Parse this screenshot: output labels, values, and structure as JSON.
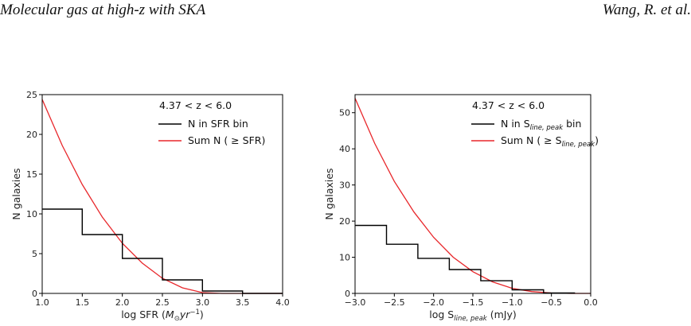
{
  "header": {
    "left_title": "Molecular gas at high-z with SKA",
    "right_author": "Wang, R. et al."
  },
  "colors": {
    "step": "#000000",
    "curve": "#e8272b",
    "axis": "#000000"
  },
  "chart_data": [
    {
      "type": "line",
      "xlabel_prefix": "log SFR (",
      "xlabel_unit_base": "M",
      "xlabel_unit_sub": "⊙",
      "xlabel_unit_rest": "yr",
      "xlabel_unit_exp": "−1",
      "xlabel_suffix": ")",
      "ylabel": "N galaxies",
      "xlim": [
        1.0,
        4.0
      ],
      "ylim": [
        0,
        25
      ],
      "xticks": [
        1.0,
        1.5,
        2.0,
        2.5,
        3.0,
        3.5,
        4.0
      ],
      "xtick_labels": [
        "1.0",
        "1.5",
        "2.0",
        "2.5",
        "3.0",
        "3.5",
        "4.0"
      ],
      "yticks": [
        0,
        5,
        10,
        15,
        20,
        25
      ],
      "ytick_labels": [
        "0",
        "5",
        "10",
        "15",
        "20",
        "25"
      ],
      "annotation": "4.37 < z < 6.0",
      "legend": [
        {
          "label": "N in SFR bin",
          "label_sub": "",
          "label_tail": ""
        },
        {
          "label": "Sum N ( ≥ SFR)",
          "label_sub": "",
          "label_tail": ""
        }
      ],
      "series": [
        {
          "name": "N in SFR bin",
          "kind": "step",
          "bin_edges": [
            1.0,
            1.5,
            2.0,
            2.5,
            3.0,
            3.5,
            4.0
          ],
          "values": [
            10.6,
            7.4,
            4.4,
            1.7,
            0.3,
            0.0
          ]
        },
        {
          "name": "Sum N ( ≥ SFR)",
          "kind": "curve",
          "x": [
            1.0,
            1.25,
            1.5,
            1.75,
            2.0,
            2.25,
            2.5,
            2.75,
            3.0,
            3.25,
            3.5,
            3.75,
            4.0
          ],
          "y": [
            24.4,
            18.6,
            13.7,
            9.6,
            6.3,
            3.8,
            1.9,
            0.7,
            0.1,
            0.0,
            0.0,
            0.0,
            0.0
          ]
        }
      ]
    },
    {
      "type": "line",
      "xlabel_prefix": "log S",
      "xlabel_unit_base": "",
      "xlabel_unit_sub": "line, peak",
      "xlabel_unit_rest": " (mJy)",
      "xlabel_unit_exp": "",
      "xlabel_suffix": "",
      "ylabel": "N galaxies",
      "xlim": [
        -3.0,
        0.0
      ],
      "ylim": [
        0,
        55
      ],
      "xticks": [
        -3.0,
        -2.5,
        -2.0,
        -1.5,
        -1.0,
        -0.5,
        0.0
      ],
      "xtick_labels": [
        "−3.0",
        "−2.5",
        "−2.0",
        "−1.5",
        "−1.0",
        "−0.5",
        "0.0"
      ],
      "yticks": [
        0,
        10,
        20,
        30,
        40,
        50
      ],
      "ytick_labels": [
        "0",
        "10",
        "20",
        "30",
        "40",
        "50"
      ],
      "annotation": "4.37 < z < 6.0",
      "legend": [
        {
          "label": "N in S",
          "label_sub": "line, peak",
          "label_tail": " bin"
        },
        {
          "label": "Sum N ( ≥ S",
          "label_sub": "line, peak",
          "label_tail": ")"
        }
      ],
      "series": [
        {
          "name": "N in S_line,peak bin",
          "kind": "step",
          "bin_edges": [
            -3.0,
            -2.6,
            -2.2,
            -1.8,
            -1.4,
            -1.0,
            -0.6,
            -0.2
          ],
          "values": [
            18.8,
            13.6,
            9.7,
            6.6,
            3.5,
            1.0,
            0.1
          ]
        },
        {
          "name": "Sum N ( ≥ S_line,peak)",
          "kind": "curve",
          "x": [
            -3.0,
            -2.75,
            -2.5,
            -2.25,
            -2.0,
            -1.75,
            -1.5,
            -1.25,
            -1.0,
            -0.75,
            -0.5,
            -0.25,
            0.0
          ],
          "y": [
            54.0,
            41.5,
            31.0,
            22.5,
            15.5,
            10.0,
            6.0,
            3.2,
            1.4,
            0.5,
            0.1,
            0.0,
            0.0
          ]
        }
      ]
    }
  ]
}
